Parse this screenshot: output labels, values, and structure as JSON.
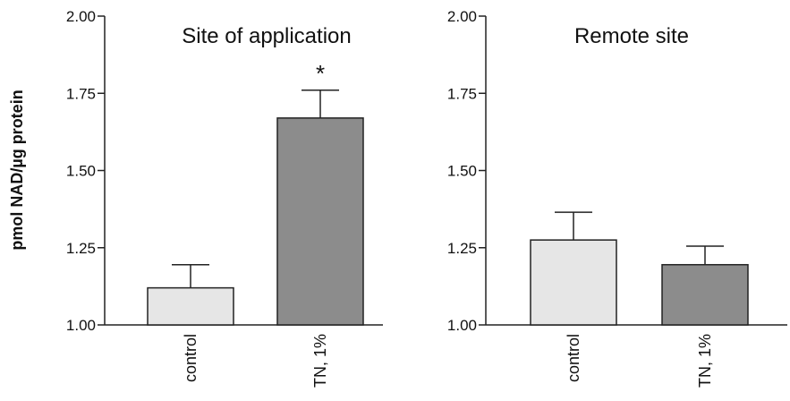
{
  "chart_data": [
    {
      "type": "bar",
      "title": "Site of application",
      "ylabel": "pmol NAD/µg protein",
      "ylim": [
        1.0,
        2.0
      ],
      "yticks": [
        "1.00",
        "1.25",
        "1.50",
        "1.75",
        "2.00"
      ],
      "categories": [
        "control",
        "TN, 1%"
      ],
      "values": [
        1.12,
        1.67
      ],
      "errors": [
        0.075,
        0.09
      ],
      "annotations": [
        "",
        "*"
      ],
      "colors": [
        "#e6e6e6",
        "#8c8c8c"
      ]
    },
    {
      "type": "bar",
      "title": "Remote site",
      "ylabel": "",
      "ylim": [
        1.0,
        2.0
      ],
      "yticks": [
        "1.00",
        "1.25",
        "1.50",
        "1.75",
        "2.00"
      ],
      "categories": [
        "control",
        "TN, 1%"
      ],
      "values": [
        1.275,
        1.195
      ],
      "errors": [
        0.09,
        0.06
      ],
      "annotations": [
        "",
        ""
      ],
      "colors": [
        "#e6e6e6",
        "#8c8c8c"
      ]
    }
  ]
}
